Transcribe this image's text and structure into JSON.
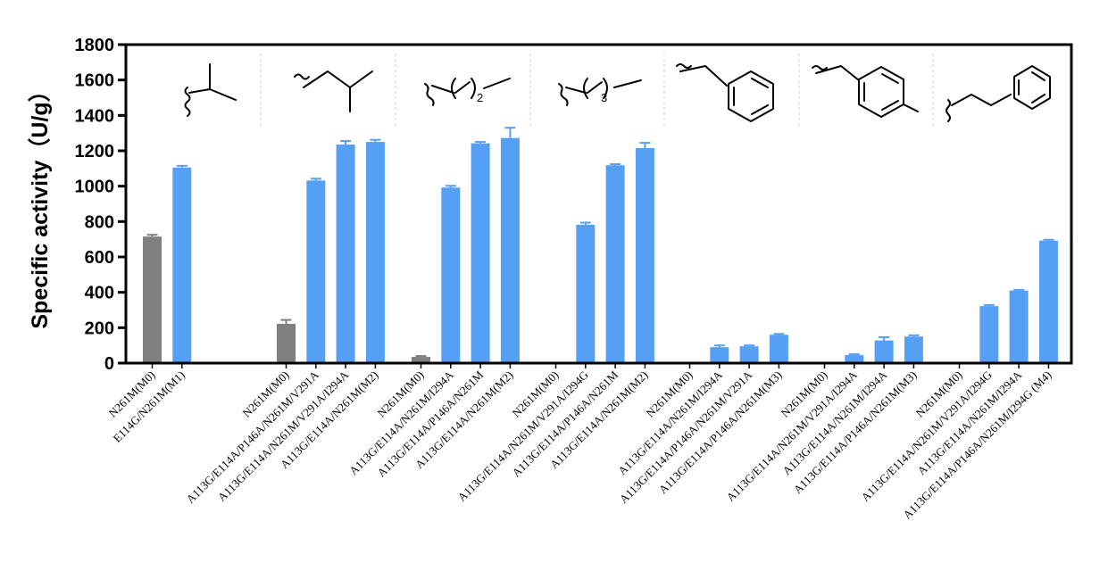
{
  "chart_data": {
    "type": "bar",
    "ylabel": "Specific activity（U/g）",
    "ylim": [
      0,
      1800
    ],
    "yticks": [
      0,
      200,
      400,
      600,
      800,
      1000,
      1200,
      1400,
      1600,
      1800
    ],
    "grid": false,
    "legend": "none",
    "colors": {
      "M0": "#808080",
      "mutant": "#559ff5"
    },
    "groups": [
      {
        "substituent_icon": "isopropyl-structure",
        "bars": [
          {
            "label": "N261M(M0)",
            "value": 715,
            "error": 10,
            "kind": "M0"
          },
          {
            "label": "E114G/N261M(M1)",
            "value": 1105,
            "error": 10,
            "kind": "mutant"
          }
        ]
      },
      {
        "substituent_icon": "isobutyl-structure",
        "bars": [
          {
            "label": "N261M(M0)",
            "value": 222,
            "error": 22,
            "kind": "M0"
          },
          {
            "label": "A113G/E114A/P146A/N261M/V291A",
            "value": 1032,
            "error": 10,
            "kind": "mutant"
          },
          {
            "label": "A113G/E114A/N261M/V291A/I294A",
            "value": 1235,
            "error": 20,
            "kind": "mutant"
          },
          {
            "label": "A113G/E114A/N261M(M2)",
            "value": 1250,
            "error": 12,
            "kind": "mutant"
          }
        ]
      },
      {
        "substituent_icon": "n-butyl-structure",
        "subscript": "2",
        "bars": [
          {
            "label": "N261M(M0)",
            "value": 35,
            "error": 5,
            "kind": "M0"
          },
          {
            "label": "A113G/E114A/N261M/I294A",
            "value": 992,
            "error": 10,
            "kind": "mutant"
          },
          {
            "label": "A113G/E114A/P146A/N261M",
            "value": 1242,
            "error": 8,
            "kind": "mutant"
          },
          {
            "label": "A113G/E114A/N261M(M2)",
            "value": 1272,
            "error": 58,
            "kind": "mutant"
          }
        ]
      },
      {
        "substituent_icon": "n-pentyl-structure",
        "subscript": "3",
        "bars": [
          {
            "label": "N261M(M0)",
            "value": 0,
            "error": 0,
            "kind": "M0"
          },
          {
            "label": "A113G/E114A/N261M/V291A/I294G",
            "value": 782,
            "error": 12,
            "kind": "mutant"
          },
          {
            "label": "A113G/E114A/P146A/N261M",
            "value": 1118,
            "error": 6,
            "kind": "mutant"
          },
          {
            "label": "A113G/E114A/N261M(M2)",
            "value": 1215,
            "error": 30,
            "kind": "mutant"
          }
        ]
      },
      {
        "substituent_icon": "benzyl-structure",
        "bars": [
          {
            "label": "N261M(M0)",
            "value": 0,
            "error": 0,
            "kind": "M0"
          },
          {
            "label": "A113G/E114A/N261M/I294A",
            "value": 90,
            "error": 10,
            "kind": "mutant"
          },
          {
            "label": "A113G/E114A/P146A/N261M/V291A",
            "value": 95,
            "error": 5,
            "kind": "mutant"
          },
          {
            "label": "A113G/E114A/P146A/N261M(M3)",
            "value": 160,
            "error": 5,
            "kind": "mutant"
          }
        ]
      },
      {
        "substituent_icon": "4-methylbenzyl-structure",
        "bars": [
          {
            "label": "N261M(M0)",
            "value": 0,
            "error": 0,
            "kind": "M0"
          },
          {
            "label": "A113G/E114A/N261M/V291A/I294A",
            "value": 45,
            "error": 5,
            "kind": "mutant"
          },
          {
            "label": "A113G/E114A/N261M/I294A",
            "value": 128,
            "error": 18,
            "kind": "mutant"
          },
          {
            "label": "A113G/E114A/P146A/N261M(M3)",
            "value": 150,
            "error": 7,
            "kind": "mutant"
          }
        ]
      },
      {
        "substituent_icon": "phenylethyl-structure",
        "bars": [
          {
            "label": "N261M(M0)",
            "value": 0,
            "error": 0,
            "kind": "M0"
          },
          {
            "label": "A113G/E114A/N261M/V291A/I294G",
            "value": 322,
            "error": 6,
            "kind": "mutant"
          },
          {
            "label": "A113G/E114A/N261M/I294A",
            "value": 410,
            "error": 4,
            "kind": "mutant"
          },
          {
            "label": "A113G/E114A/P146A/N261M/I294G (M4)",
            "value": 692,
            "error": 5,
            "kind": "mutant"
          }
        ]
      }
    ]
  }
}
